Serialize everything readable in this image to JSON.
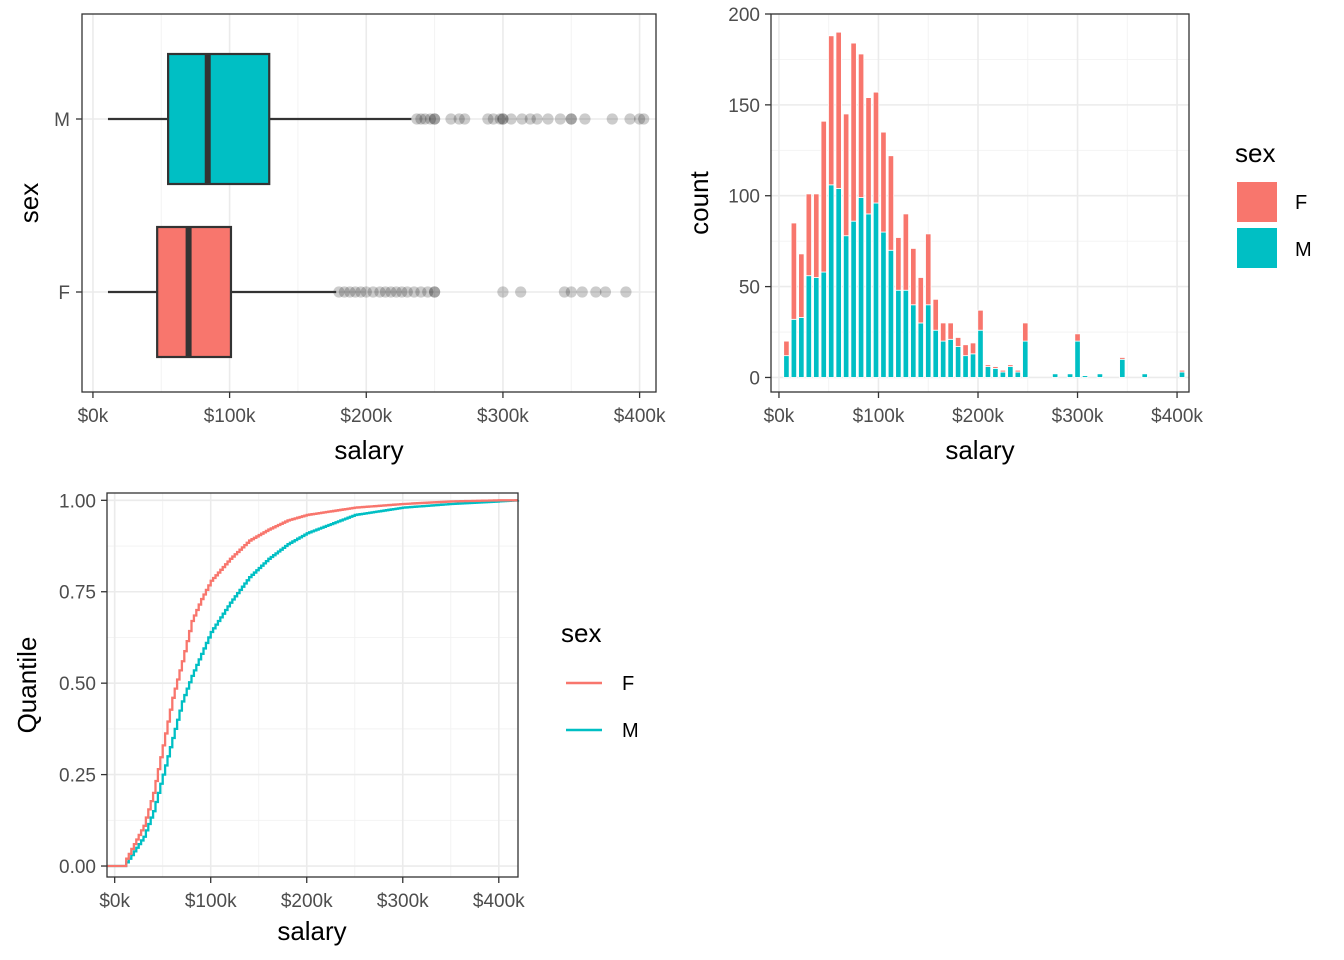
{
  "chart_data": [
    {
      "type": "boxplot",
      "orientation": "horizontal",
      "xlabel": "salary",
      "ylabel": "sex",
      "xlim": [
        -8000,
        412000
      ],
      "x_ticks": [
        0,
        100000,
        200000,
        300000,
        400000
      ],
      "x_tick_labels": [
        "$0k",
        "$100k",
        "$200k",
        "$300k",
        "$400k"
      ],
      "categories": [
        "F",
        "M"
      ],
      "grid": true,
      "series": [
        {
          "name": "F",
          "color": "#F8766D",
          "whisker_low": 11000,
          "q1": 47000,
          "median": 70000,
          "q3": 101000,
          "whisker_high": 178000,
          "outliers": [
            180000,
            184000,
            188000,
            192000,
            196000,
            200000,
            205000,
            210000,
            214000,
            218000,
            222000,
            226000,
            230000,
            235000,
            240000,
            245000,
            250000,
            250000,
            300000,
            313000,
            345000,
            350000,
            358000,
            368000,
            375000,
            390000
          ]
        },
        {
          "name": "M",
          "color": "#00BFC4",
          "whisker_low": 11000,
          "q1": 55000,
          "median": 84000,
          "q3": 129000,
          "whisker_high": 233000,
          "outliers": [
            237000,
            240000,
            243000,
            247000,
            250000,
            250000,
            262000,
            268000,
            272000,
            289000,
            293000,
            298000,
            300000,
            300000,
            306000,
            314000,
            320000,
            325000,
            333000,
            342000,
            350000,
            350000,
            360000,
            380000,
            393000,
            400000,
            403000
          ]
        }
      ]
    },
    {
      "type": "bar",
      "stacked": true,
      "xlabel": "salary",
      "ylabel": "count",
      "xlim": [
        -8000,
        412000
      ],
      "ylim": [
        -8,
        200
      ],
      "x_ticks": [
        0,
        100000,
        200000,
        300000,
        400000
      ],
      "x_tick_labels": [
        "$0k",
        "$100k",
        "$200k",
        "$300k",
        "$400k"
      ],
      "y_ticks": [
        0,
        50,
        100,
        150,
        200
      ],
      "y_tick_labels": [
        "0",
        "50",
        "100",
        "150",
        "200"
      ],
      "legend": {
        "title": "sex",
        "position": "right",
        "entries": [
          "F",
          "M"
        ]
      },
      "grid": true,
      "x": [
        7500,
        15000,
        22500,
        30000,
        37500,
        45000,
        52500,
        60000,
        67500,
        75000,
        82500,
        90000,
        97500,
        105000,
        112500,
        120000,
        127500,
        135000,
        142500,
        150000,
        157500,
        165000,
        172500,
        180000,
        187500,
        195000,
        202500,
        210000,
        217500,
        225000,
        232500,
        240000,
        247500,
        277500,
        292500,
        300000,
        307500,
        322500,
        345000,
        367500,
        405000
      ],
      "series": [
        {
          "name": "F",
          "color": "#F8766D",
          "values": [
            8,
            53,
            35,
            45,
            46,
            83,
            82,
            86,
            67,
            98,
            79,
            64,
            61,
            55,
            52,
            29,
            42,
            31,
            25,
            39,
            17,
            10,
            9,
            5,
            6,
            6,
            11,
            1,
            1,
            1,
            1,
            1,
            10,
            0,
            0,
            4,
            0,
            0,
            1,
            0,
            1
          ]
        },
        {
          "name": "M",
          "color": "#00BFC4",
          "values": [
            12,
            32,
            33,
            56,
            55,
            58,
            106,
            104,
            78,
            86,
            99,
            90,
            96,
            80,
            70,
            48,
            48,
            40,
            30,
            40,
            26,
            20,
            21,
            17,
            12,
            13,
            26,
            6,
            5,
            3,
            6,
            3,
            20,
            2,
            2,
            20,
            1,
            2,
            10,
            2,
            3
          ]
        }
      ]
    },
    {
      "type": "line",
      "subtype": "ecdf",
      "xlabel": "salary",
      "ylabel": "Quantile",
      "xlim": [
        -8000,
        420000
      ],
      "ylim": [
        -0.03,
        1.02
      ],
      "x_ticks": [
        0,
        100000,
        200000,
        300000,
        400000
      ],
      "x_tick_labels": [
        "$0k",
        "$100k",
        "$200k",
        "$300k",
        "$400k"
      ],
      "y_ticks": [
        0,
        0.25,
        0.5,
        0.75,
        1
      ],
      "y_tick_labels": [
        "0.00",
        "0.25",
        "0.50",
        "0.75",
        "1.00"
      ],
      "legend": {
        "title": "sex",
        "position": "right",
        "entries": [
          "F",
          "M"
        ]
      },
      "grid": true,
      "series": [
        {
          "name": "F",
          "color": "#F8766D",
          "points": [
            [
              -8000,
              0
            ],
            [
              10000,
              0
            ],
            [
              12000,
              0.02
            ],
            [
              20000,
              0.06
            ],
            [
              30000,
              0.11
            ],
            [
              40000,
              0.2
            ],
            [
              50000,
              0.33
            ],
            [
              60000,
              0.46
            ],
            [
              70000,
              0.56
            ],
            [
              80000,
              0.67
            ],
            [
              90000,
              0.73
            ],
            [
              100000,
              0.78
            ],
            [
              120000,
              0.84
            ],
            [
              140000,
              0.89
            ],
            [
              160000,
              0.92
            ],
            [
              180000,
              0.945
            ],
            [
              200000,
              0.96
            ],
            [
              250000,
              0.98
            ],
            [
              300000,
              0.99
            ],
            [
              350000,
              0.997
            ],
            [
              400000,
              1
            ],
            [
              420000,
              1
            ]
          ]
        },
        {
          "name": "M",
          "color": "#00BFC4",
          "points": [
            [
              -8000,
              0
            ],
            [
              10000,
              0
            ],
            [
              12000,
              0.01
            ],
            [
              20000,
              0.04
            ],
            [
              30000,
              0.08
            ],
            [
              40000,
              0.15
            ],
            [
              50000,
              0.25
            ],
            [
              60000,
              0.35
            ],
            [
              70000,
              0.45
            ],
            [
              80000,
              0.52
            ],
            [
              90000,
              0.58
            ],
            [
              100000,
              0.64
            ],
            [
              120000,
              0.72
            ],
            [
              140000,
              0.79
            ],
            [
              160000,
              0.84
            ],
            [
              180000,
              0.88
            ],
            [
              200000,
              0.91
            ],
            [
              250000,
              0.96
            ],
            [
              300000,
              0.98
            ],
            [
              350000,
              0.99
            ],
            [
              400000,
              0.997
            ],
            [
              420000,
              1
            ]
          ]
        }
      ]
    }
  ]
}
